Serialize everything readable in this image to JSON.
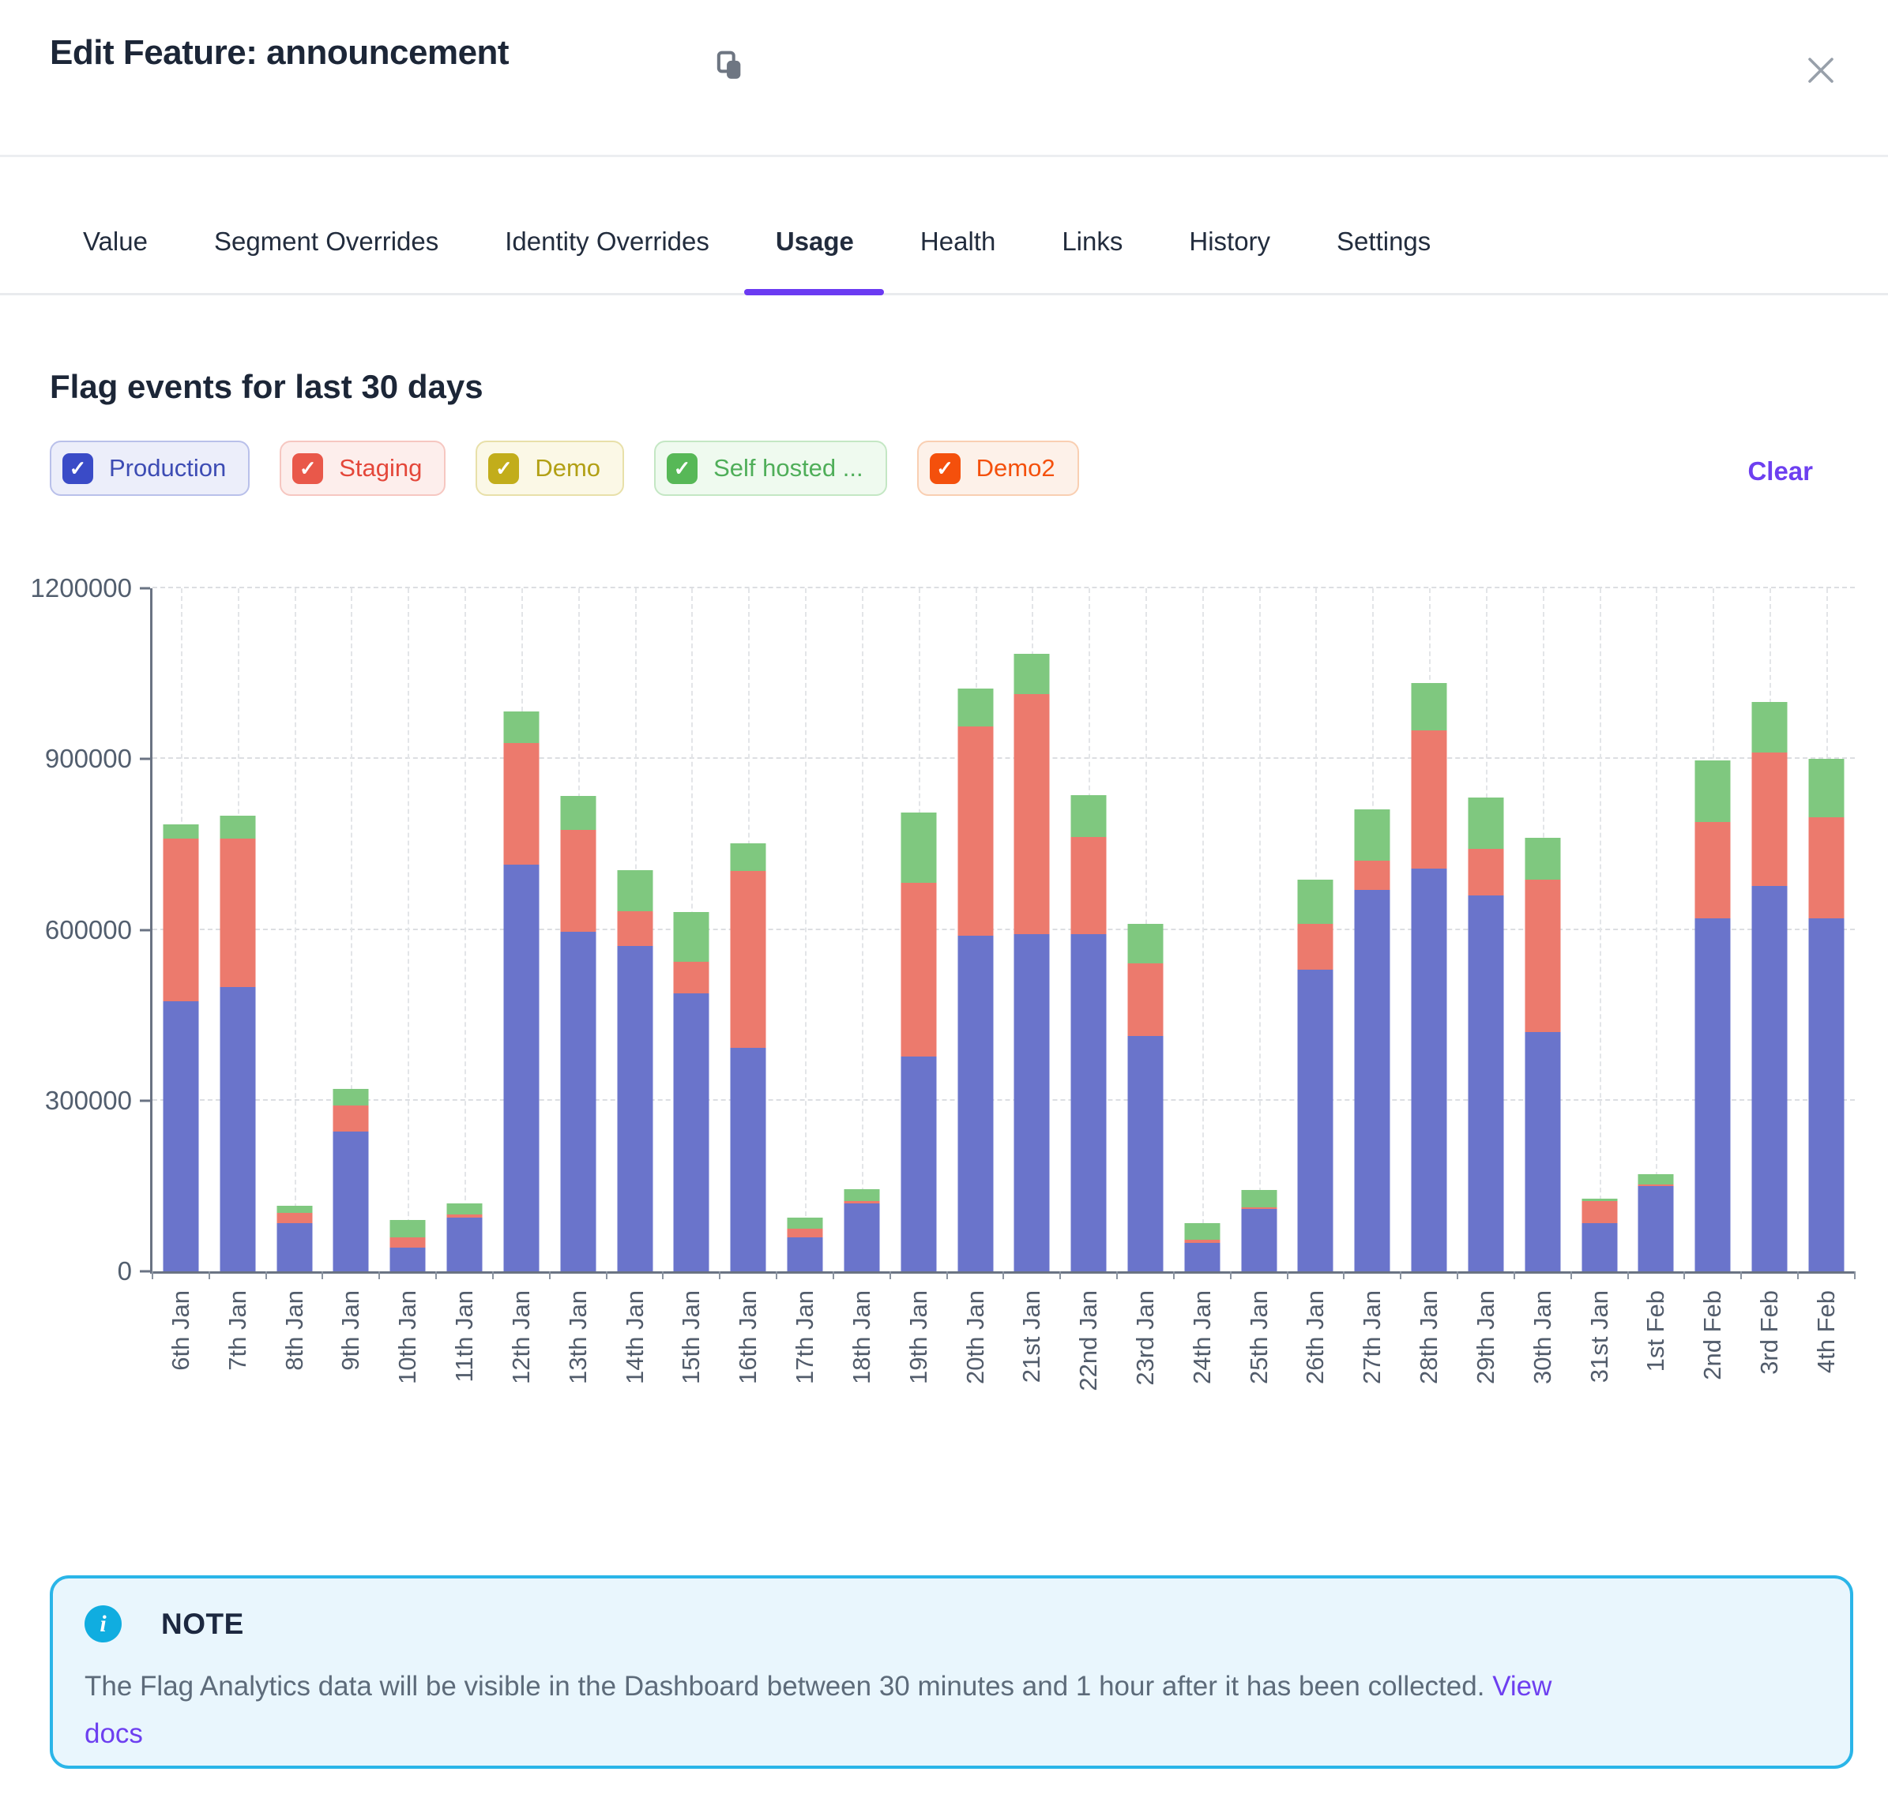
{
  "modal": {
    "title": "Edit Feature: announcement"
  },
  "tabs": [
    {
      "label": "Value",
      "active": false
    },
    {
      "label": "Segment Overrides",
      "active": false
    },
    {
      "label": "Identity Overrides",
      "active": false
    },
    {
      "label": "Usage",
      "active": true
    },
    {
      "label": "Health",
      "active": false
    },
    {
      "label": "Links",
      "active": false
    },
    {
      "label": "History",
      "active": false
    },
    {
      "label": "Settings",
      "active": false
    }
  ],
  "usage": {
    "heading": "Flag events for last 30 days",
    "clear_label": "Clear",
    "environments": [
      {
        "label": "Production",
        "checked": true,
        "check_color": "#3a4bc7",
        "bg": "#eceefa",
        "border": "#b9c0ea",
        "text_color": "#3d4cb4"
      },
      {
        "label": "Staging",
        "checked": true,
        "check_color": "#e9584a",
        "bg": "#fdeeec",
        "border": "#f6c7c1",
        "text_color": "#e4473a"
      },
      {
        "label": "Demo",
        "checked": true,
        "check_color": "#c2ad1b",
        "bg": "#fbf8e6",
        "border": "#e8e0a9",
        "text_color": "#b2a015"
      },
      {
        "label": "Self hosted ...",
        "checked": true,
        "check_color": "#57b857",
        "bg": "#effaef",
        "border": "#c4e7c4",
        "text_color": "#4fae59"
      },
      {
        "label": "Demo2",
        "checked": true,
        "check_color": "#f4500c",
        "bg": "#fdf1e9",
        "border": "#f9cfb2",
        "text_color": "#f4500c"
      }
    ]
  },
  "chart_data": {
    "type": "bar",
    "stacked": true,
    "title": "Flag events for last 30 days",
    "xlabel": "",
    "ylabel": "",
    "ylim": [
      0,
      1200000
    ],
    "yticks": [
      0,
      300000,
      600000,
      900000,
      1200000
    ],
    "grid": true,
    "legend_position": "top-chips",
    "categories": [
      "6th Jan",
      "7th Jan",
      "8th Jan",
      "9th Jan",
      "10th Jan",
      "11th Jan",
      "12th Jan",
      "13th Jan",
      "14th Jan",
      "15th Jan",
      "16th Jan",
      "17th Jan",
      "18th Jan",
      "19th Jan",
      "20th Jan",
      "21st Jan",
      "22nd Jan",
      "23rd Jan",
      "24th Jan",
      "25th Jan",
      "26th Jan",
      "27th Jan",
      "28th Jan",
      "29th Jan",
      "30th Jan",
      "31st Jan",
      "1st Feb",
      "2nd Feb",
      "3rd Feb",
      "4th Feb"
    ],
    "series": [
      {
        "name": "Production",
        "color": "#6a74cb",
        "values": [
          475000,
          500000,
          85000,
          245000,
          42000,
          95000,
          715000,
          596000,
          572000,
          489000,
          392000,
          60000,
          120000,
          377000,
          590000,
          593000,
          593000,
          413000,
          50000,
          110000,
          530000,
          670000,
          708000,
          660000,
          420000,
          85000,
          150000,
          620000,
          677000,
          620000
        ]
      },
      {
        "name": "Staging",
        "color": "#ec7a6d",
        "values": [
          285000,
          260000,
          18000,
          46000,
          18000,
          5000,
          213000,
          179000,
          61000,
          55000,
          312000,
          15000,
          3000,
          305000,
          367000,
          421000,
          170000,
          128000,
          5000,
          3000,
          81000,
          52000,
          242000,
          82000,
          268000,
          38000,
          2000,
          170000,
          234000,
          178000
        ]
      },
      {
        "name": "Self hosted ...",
        "color": "#7fc87f",
        "values": [
          25000,
          40000,
          12000,
          30000,
          30000,
          20000,
          56000,
          60000,
          72000,
          87000,
          48000,
          20000,
          22000,
          124000,
          67000,
          71000,
          74000,
          69000,
          30000,
          30000,
          77000,
          90000,
          84000,
          91000,
          73000,
          5000,
          18000,
          108000,
          89000,
          103000
        ]
      },
      {
        "name": "Demo",
        "color": "#c2ad1b",
        "values": [
          0,
          0,
          0,
          0,
          0,
          0,
          0,
          0,
          0,
          0,
          0,
          0,
          0,
          0,
          0,
          0,
          0,
          0,
          0,
          0,
          0,
          0,
          0,
          0,
          0,
          0,
          0,
          0,
          0,
          0
        ]
      },
      {
        "name": "Demo2",
        "color": "#f4500c",
        "values": [
          0,
          0,
          0,
          0,
          0,
          0,
          0,
          0,
          0,
          0,
          0,
          0,
          0,
          0,
          0,
          0,
          0,
          0,
          0,
          0,
          0,
          0,
          0,
          0,
          0,
          0,
          0,
          0,
          0,
          0
        ]
      }
    ]
  },
  "note": {
    "title": "NOTE",
    "icon": "i",
    "body": "The Flag Analytics data will be visible in the Dashboard between 30 minutes and 1 hour after it has been collected.",
    "link_label": "View docs",
    "accent": "#2ab5e8"
  }
}
